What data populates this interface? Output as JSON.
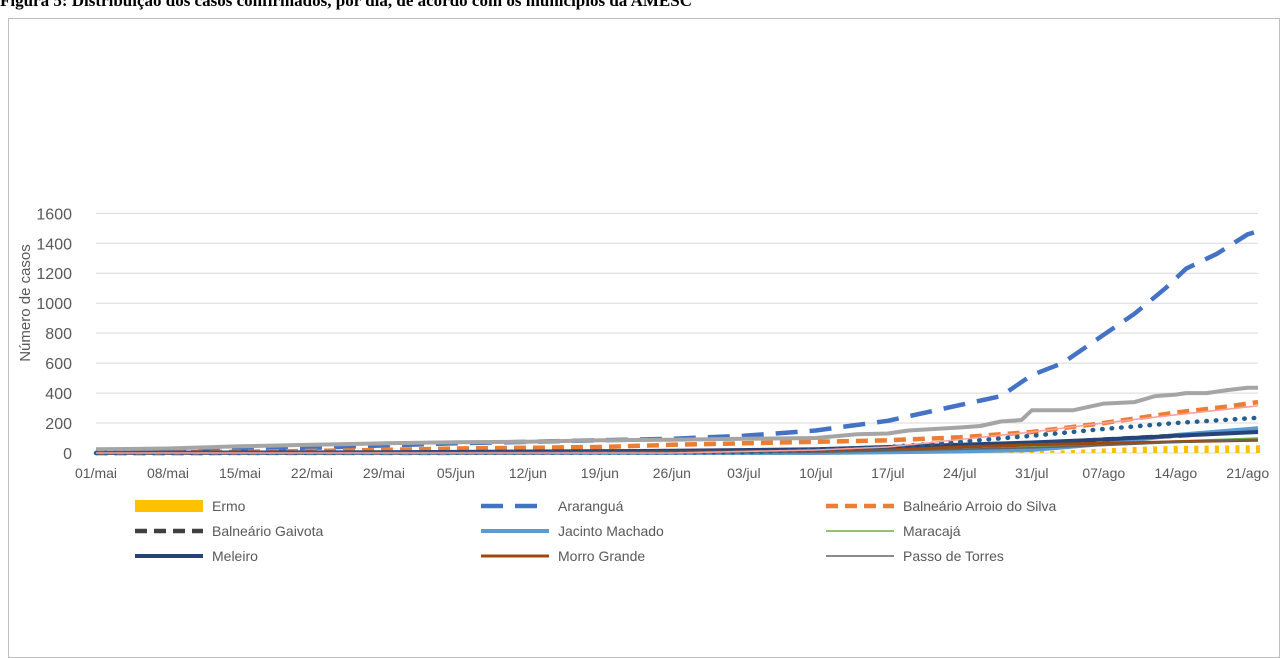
{
  "figure": {
    "title": "Figura 5: Distribuição dos casos confirmados, por dia, de acordo com os municípios da AMESC"
  },
  "chart_data": {
    "type": "line",
    "ylabel": "Número de casos",
    "ylim": [
      0,
      1700
    ],
    "y_ticks": [
      0,
      200,
      400,
      600,
      800,
      1000,
      1200,
      1400,
      1600
    ],
    "x_tick_labels": [
      "01/mai",
      "08/mai",
      "15/mai",
      "22/mai",
      "29/mai",
      "05/jun",
      "12/jun",
      "19/jun",
      "26/jun",
      "03/jul",
      "10/jul",
      "17/jul",
      "24/jul",
      "31/jul",
      "07/ago",
      "14/ago",
      "21/ago"
    ],
    "grid": "horizontal",
    "legend_position": "bottom",
    "colors": {
      "Ermo": "#ffc000",
      "Araranguá": "#4472c4",
      "Balneário Arroio do Silva": "#ed7d31",
      "Balneário Gaivota": "#404040",
      "Jacinto Machado": "#5b9bd5",
      "Maracajá": "#70ad47",
      "Meleiro": "#264478",
      "Morro Grande": "#9e480e",
      "Passo de Torres": "#636363",
      "Others": [
        "#a5a5a5",
        "#255e91",
        "#ff9f9f"
      ]
    },
    "series": [
      {
        "name": "Ermo",
        "style": "bars",
        "points": [
          [
            0,
            0
          ],
          [
            70,
            0
          ],
          [
            84,
            0
          ],
          [
            91,
            10
          ],
          [
            95,
            20
          ],
          [
            98,
            30
          ],
          [
            101,
            40
          ],
          [
            105,
            48
          ],
          [
            112,
            52
          ],
          [
            113,
            52
          ]
        ]
      },
      {
        "name": "Araranguá",
        "style": "long-dash",
        "points": [
          [
            0,
            5
          ],
          [
            7,
            10
          ],
          [
            14,
            20
          ],
          [
            21,
            35
          ],
          [
            28,
            50
          ],
          [
            35,
            65
          ],
          [
            42,
            75
          ],
          [
            49,
            85
          ],
          [
            56,
            95
          ],
          [
            63,
            115
          ],
          [
            70,
            150
          ],
          [
            77,
            215
          ],
          [
            84,
            320
          ],
          [
            88,
            380
          ],
          [
            91,
            520
          ],
          [
            94,
            600
          ],
          [
            98,
            790
          ],
          [
            101,
            930
          ],
          [
            104,
            1100
          ],
          [
            106,
            1230
          ],
          [
            109,
            1330
          ],
          [
            112,
            1460
          ],
          [
            113,
            1480
          ]
        ]
      },
      {
        "name": "Balneário Arroio do Silva",
        "style": "dash",
        "points": [
          [
            0,
            3
          ],
          [
            14,
            8
          ],
          [
            28,
            20
          ],
          [
            35,
            30
          ],
          [
            49,
            40
          ],
          [
            56,
            55
          ],
          [
            63,
            65
          ],
          [
            70,
            75
          ],
          [
            77,
            85
          ],
          [
            84,
            105
          ],
          [
            91,
            140
          ],
          [
            98,
            200
          ],
          [
            105,
            270
          ],
          [
            110,
            310
          ],
          [
            113,
            340
          ]
        ]
      },
      {
        "name": "Balneário Gaivota",
        "style": "dash",
        "points": [
          [
            0,
            0
          ],
          [
            56,
            2
          ],
          [
            70,
            10
          ],
          [
            77,
            25
          ],
          [
            84,
            40
          ],
          [
            91,
            60
          ],
          [
            98,
            90
          ],
          [
            105,
            115
          ],
          [
            113,
            150
          ]
        ]
      },
      {
        "name": "Jacinto Machado",
        "style": "solid-thick",
        "points": [
          [
            0,
            0
          ],
          [
            70,
            0
          ],
          [
            84,
            10
          ],
          [
            91,
            20
          ],
          [
            98,
            60
          ],
          [
            105,
            120
          ],
          [
            113,
            165
          ]
        ]
      },
      {
        "name": "Maracajá",
        "style": "solid-thin",
        "points": [
          [
            0,
            0
          ],
          [
            63,
            0
          ],
          [
            70,
            5
          ],
          [
            77,
            15
          ],
          [
            84,
            25
          ],
          [
            91,
            40
          ],
          [
            98,
            60
          ],
          [
            105,
            80
          ],
          [
            113,
            100
          ]
        ]
      },
      {
        "name": "Meleiro",
        "style": "solid-thick",
        "points": [
          [
            0,
            2
          ],
          [
            28,
            5
          ],
          [
            56,
            15
          ],
          [
            70,
            25
          ],
          [
            77,
            40
          ],
          [
            84,
            55
          ],
          [
            91,
            70
          ],
          [
            98,
            90
          ],
          [
            105,
            115
          ],
          [
            113,
            140
          ]
        ]
      },
      {
        "name": "Morro Grande",
        "style": "solid-medium",
        "points": [
          [
            0,
            0
          ],
          [
            42,
            2
          ],
          [
            63,
            8
          ],
          [
            77,
            20
          ],
          [
            84,
            40
          ],
          [
            91,
            55
          ],
          [
            98,
            65
          ],
          [
            105,
            75
          ],
          [
            113,
            85
          ]
        ]
      },
      {
        "name": "Passo de Torres",
        "style": "solid-thin",
        "points": [
          [
            0,
            0
          ],
          [
            56,
            0
          ],
          [
            70,
            5
          ],
          [
            77,
            15
          ],
          [
            84,
            25
          ],
          [
            91,
            35
          ],
          [
            98,
            50
          ],
          [
            105,
            70
          ],
          [
            113,
            90
          ]
        ]
      },
      {
        "style": "solid-thick",
        "color_key": 0,
        "points": [
          [
            0,
            25
          ],
          [
            7,
            30
          ],
          [
            14,
            45
          ],
          [
            21,
            55
          ],
          [
            28,
            65
          ],
          [
            35,
            72
          ],
          [
            42,
            75
          ],
          [
            49,
            85
          ],
          [
            56,
            88
          ],
          [
            63,
            95
          ],
          [
            70,
            100
          ],
          [
            74,
            125
          ],
          [
            77,
            130
          ],
          [
            79,
            150
          ],
          [
            84,
            170
          ],
          [
            86,
            180
          ],
          [
            88,
            210
          ],
          [
            90,
            220
          ],
          [
            91,
            285
          ],
          [
            95,
            285
          ],
          [
            98,
            330
          ],
          [
            101,
            340
          ],
          [
            103,
            380
          ],
          [
            105,
            390
          ],
          [
            106,
            400
          ],
          [
            108,
            400
          ],
          [
            110,
            420
          ],
          [
            112,
            435
          ],
          [
            113,
            435
          ]
        ]
      },
      {
        "style": "dotted",
        "color_key": 1,
        "points": [
          [
            0,
            0
          ],
          [
            63,
            5
          ],
          [
            70,
            20
          ],
          [
            77,
            40
          ],
          [
            84,
            75
          ],
          [
            91,
            115
          ],
          [
            98,
            160
          ],
          [
            105,
            200
          ],
          [
            113,
            235
          ]
        ]
      },
      {
        "style": "solid-thin",
        "color_key": 2,
        "points": [
          [
            0,
            0
          ],
          [
            56,
            0
          ],
          [
            70,
            20
          ],
          [
            77,
            40
          ],
          [
            84,
            90
          ],
          [
            91,
            140
          ],
          [
            98,
            200
          ],
          [
            105,
            255
          ],
          [
            113,
            315
          ]
        ]
      }
    ],
    "legend": {
      "items": [
        {
          "label": "Ermo",
          "style": "bars"
        },
        {
          "label": "Araranguá",
          "style": "long-dash"
        },
        {
          "label": "Balneário Arroio do Silva",
          "style": "dash"
        },
        {
          "label": "Balneário Gaivota",
          "style": "dash"
        },
        {
          "label": "Jacinto Machado",
          "style": "solid-thick"
        },
        {
          "label": "Maracajá",
          "style": "solid-thin"
        },
        {
          "label": "Meleiro",
          "style": "solid-thick"
        },
        {
          "label": "Morro Grande",
          "style": "solid-medium"
        },
        {
          "label": "Passo de Torres",
          "style": "solid-thin"
        }
      ]
    }
  }
}
